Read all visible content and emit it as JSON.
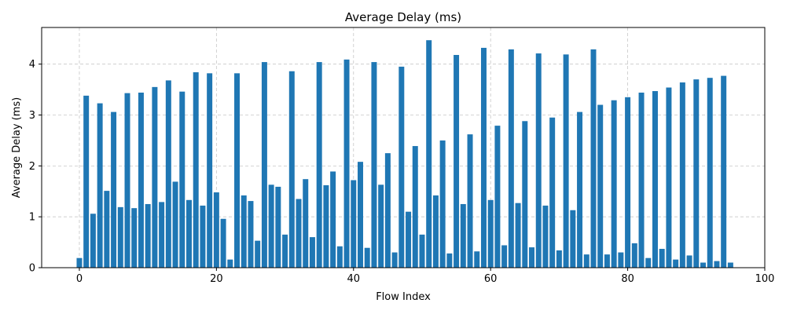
{
  "chart_data": {
    "type": "bar",
    "title": "Average Delay (ms)",
    "xlabel": "Flow Index",
    "ylabel": "Average Delay (ms)",
    "xlim": [
      -5.5,
      100
    ],
    "ylim": [
      0,
      4.72
    ],
    "xticks": [
      0,
      20,
      40,
      60,
      80,
      100
    ],
    "yticks": [
      0,
      1,
      2,
      3,
      4
    ],
    "grid": true,
    "bar_color": "#1f77b4",
    "x": [
      0,
      1,
      2,
      3,
      4,
      5,
      6,
      7,
      8,
      9,
      10,
      11,
      12,
      13,
      14,
      15,
      16,
      17,
      18,
      19,
      20,
      21,
      22,
      23,
      24,
      25,
      26,
      27,
      28,
      29,
      30,
      31,
      32,
      33,
      34,
      35,
      36,
      37,
      38,
      39,
      40,
      41,
      42,
      43,
      44,
      45,
      46,
      47,
      48,
      49,
      50,
      51,
      52,
      53,
      54,
      55,
      56,
      57,
      58,
      59,
      60,
      61,
      62,
      63,
      64,
      65,
      66,
      67,
      68,
      69,
      70,
      71,
      72,
      73,
      74,
      75,
      76,
      77,
      78,
      79,
      80,
      81,
      82,
      83,
      84,
      85,
      86,
      87,
      88,
      89,
      90,
      91,
      92,
      93,
      94,
      95
    ],
    "values": [
      0.19,
      3.38,
      1.06,
      3.23,
      1.51,
      3.06,
      1.19,
      3.43,
      1.17,
      3.44,
      1.25,
      3.55,
      1.29,
      3.68,
      1.69,
      3.46,
      1.33,
      3.84,
      1.22,
      3.82,
      1.48,
      0.96,
      0.16,
      3.82,
      1.42,
      1.31,
      0.53,
      4.04,
      1.63,
      1.59,
      0.65,
      3.86,
      1.35,
      1.74,
      0.6,
      4.04,
      1.62,
      1.89,
      0.42,
      4.09,
      1.72,
      2.08,
      0.39,
      4.04,
      1.63,
      2.25,
      0.3,
      3.95,
      1.1,
      2.39,
      0.65,
      4.47,
      1.42,
      2.5,
      0.28,
      4.18,
      1.25,
      2.62,
      0.32,
      4.32,
      1.33,
      2.79,
      0.44,
      4.29,
      1.27,
      2.88,
      0.4,
      4.21,
      1.22,
      2.95,
      0.34,
      4.19,
      1.13,
      3.06,
      0.26,
      4.29,
      3.2,
      0.26,
      3.29,
      0.3,
      3.35,
      0.48,
      3.44,
      0.19,
      3.47,
      0.37,
      3.54,
      0.16,
      3.64,
      0.24,
      3.7,
      0.1,
      3.73,
      0.13,
      3.77,
      0.1
    ]
  }
}
